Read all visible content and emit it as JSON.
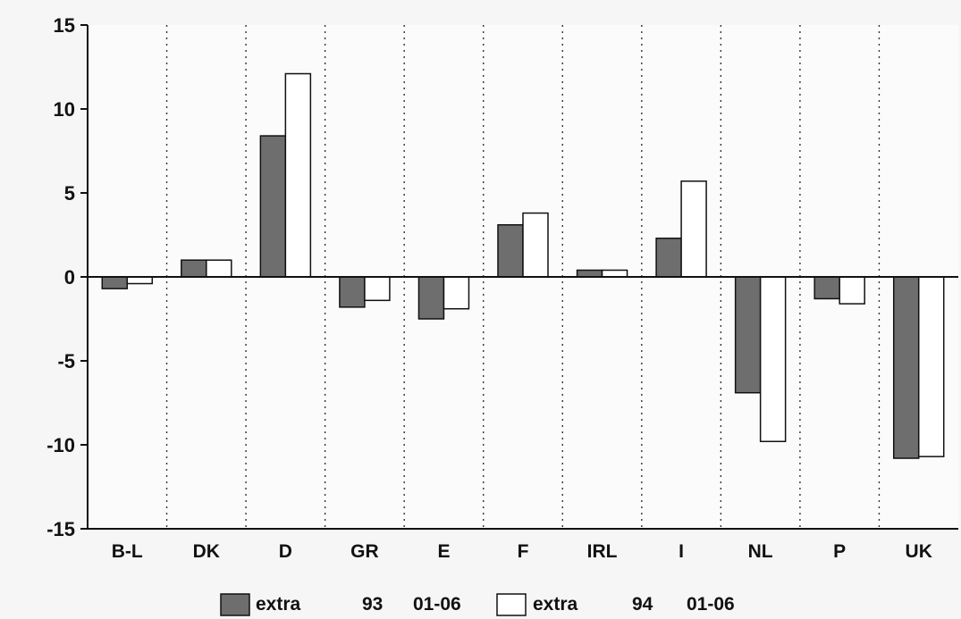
{
  "chart_data": {
    "type": "bar",
    "categories": [
      "B-L",
      "DK",
      "D",
      "GR",
      "E",
      "F",
      "IRL",
      "I",
      "NL",
      "P",
      "UK"
    ],
    "series": [
      {
        "name": "extra 93 01-06",
        "values": [
          -0.7,
          1.0,
          8.4,
          -1.8,
          -2.5,
          3.1,
          0.4,
          2.3,
          -6.9,
          -1.3,
          -10.8
        ],
        "color": "#6e6e6e"
      },
      {
        "name": "extra 94 01-06",
        "values": [
          -0.4,
          1.0,
          12.1,
          -1.4,
          -1.9,
          3.8,
          0.4,
          5.7,
          -9.8,
          -1.6,
          -10.7
        ],
        "color": "#ffffff"
      }
    ],
    "ylim": [
      -15,
      15
    ],
    "yticks": [
      15,
      10,
      5,
      0,
      -5,
      -10,
      -15
    ],
    "ytick_labels": [
      "15",
      "10",
      "5",
      "0",
      "-5",
      "-10",
      "-15"
    ],
    "title": "",
    "xlabel": "",
    "ylabel": "",
    "grid": "vertical dotted separators between categories",
    "legend_position": "bottom-center",
    "legend": {
      "items": [
        {
          "label_parts": [
            "extra",
            "93",
            "01-06"
          ],
          "color": "#6e6e6e"
        },
        {
          "label_parts": [
            "extra",
            "94",
            "01-06"
          ],
          "color": "#ffffff"
        }
      ]
    }
  }
}
